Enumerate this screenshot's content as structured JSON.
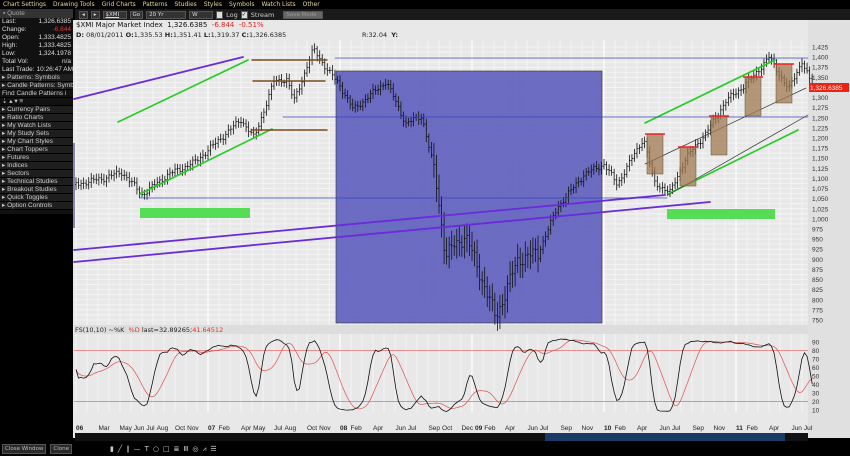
{
  "menu": [
    "Chart Settings",
    "Drawing Tools",
    "Grid Charts",
    "Patterns",
    "Studies",
    "Styles",
    "Symbols",
    "Watch Lists",
    "Other"
  ],
  "quote": {
    "title": "Quote",
    "rows": [
      {
        "label": "Last:",
        "value": "1,326.6385"
      },
      {
        "label": "Change:",
        "value": "-6.844",
        "negative": true
      },
      {
        "label": "Open:",
        "value": "1,333.4825"
      },
      {
        "label": "High:",
        "value": "1,333.4825"
      },
      {
        "label": "Low:",
        "value": "1,324.1978"
      },
      {
        "label": "Total Vol:",
        "value": "n/a"
      },
      {
        "label": "Last Trade:",
        "value": "10:26:47 AM"
      }
    ]
  },
  "sidebar": [
    "Patterns: Symbols",
    "Candle Patterns: Symb",
    "Find Candle Patterns i",
    "",
    "Currency Pairs",
    "Ratio Charts",
    "My Watch Lists",
    "My Study Sets",
    "My Chart Styles",
    "Chart Toppers",
    "Futures",
    "Indices",
    "Sectors",
    "Technical Studies",
    "Breakout Studies",
    "Quick Toggles",
    "Option Controls"
  ],
  "toolbar": {
    "symbol": "$XMI",
    "go": "Go",
    "period": "20 Yr",
    "interval": "W",
    "log_label": "Log",
    "log_checked": false,
    "stream_label": "Stream",
    "stream_checked": true,
    "disabled_btn": "Save Mode"
  },
  "header": {
    "symbol_name": "$XMI Major Market Index",
    "last": "1,326.6385",
    "change": "-6.844",
    "pct": "-0.51%",
    "d_label": "D:",
    "date": "08/01/2011",
    "o_label": "O:",
    "open": "1,335.53",
    "h_label": "H:",
    "high": "1,351.41",
    "l_label": "L:",
    "low": "1,319.37",
    "c_label": "C:",
    "close": "1,326.6385",
    "r": "R:32.04",
    "y": "Y:"
  },
  "price_tag": "1,326.6385",
  "stoch": {
    "name": "FS(10,10)",
    "k_label": "~%K",
    "d_label": "%D",
    "last": "last=32.89265;",
    "last_d": "41.64512"
  },
  "colors": {
    "k_line": "#111111",
    "d_line": "#e05050",
    "highlight_box": "#5555bb",
    "trend_green": "#22cc22",
    "trend_purple": "#6a2bd9"
  },
  "chart_data": {
    "type": "ohlc-bar",
    "title": "$XMI Major Market Index",
    "y_ticks": [
      "1,425",
      "1,400",
      "1,375",
      "1,350",
      "1,300",
      "1,275",
      "1,250",
      "1,225",
      "1,200",
      "1,175",
      "1,150",
      "1,125",
      "1,100",
      "1,075",
      "1,050",
      "1,025",
      "1,000",
      "975",
      "950",
      "925",
      "900",
      "875",
      "850",
      "825",
      "800",
      "775",
      "750"
    ],
    "ylim": [
      750,
      1425
    ],
    "stoch_ticks": [
      "90",
      "80",
      "70",
      "60",
      "50",
      "40",
      "30",
      "20",
      "10"
    ],
    "x_labels": [
      [
        "06",
        2006.0
      ],
      [
        "Mar",
        2006.17
      ],
      [
        "May",
        2006.33
      ],
      [
        "Jun",
        2006.42
      ],
      [
        "Jul",
        2006.5
      ],
      [
        "Aug",
        2006.58
      ],
      [
        "Oct",
        2006.75
      ],
      [
        "Nov",
        2006.83
      ],
      [
        "07",
        2007.0
      ],
      [
        "Feb",
        2007.08
      ],
      [
        "Apr",
        2007.25
      ],
      [
        "May",
        2007.33
      ],
      [
        "Jul",
        2007.5
      ],
      [
        "Aug",
        2007.58
      ],
      [
        "Oct",
        2007.75
      ],
      [
        "Nov",
        2007.83
      ],
      [
        "08",
        2008.0
      ],
      [
        "Feb",
        2008.08
      ],
      [
        "Apr",
        2008.25
      ],
      [
        "Jun",
        2008.42
      ],
      [
        "Jul",
        2008.5
      ],
      [
        "Sep",
        2008.67
      ],
      [
        "Oct",
        2008.75
      ],
      [
        "Dec",
        2008.92
      ],
      [
        "09",
        2009.0
      ],
      [
        "Feb",
        2009.08
      ],
      [
        "Apr",
        2009.25
      ],
      [
        "Jun",
        2009.42
      ],
      [
        "Jul",
        2009.5
      ],
      [
        "Sep",
        2009.67
      ],
      [
        "Nov",
        2009.83
      ],
      [
        "10",
        2010.0
      ],
      [
        "Feb",
        2010.08
      ],
      [
        "Apr",
        2010.25
      ],
      [
        "Jun",
        2010.42
      ],
      [
        "Jul",
        2010.5
      ],
      [
        "Sep",
        2010.67
      ],
      [
        "Nov",
        2010.83
      ],
      [
        "11",
        2011.0
      ],
      [
        "Feb",
        2011.08
      ],
      [
        "Apr",
        2011.25
      ],
      [
        "Jun",
        2011.42
      ],
      [
        "Jul",
        2011.5
      ]
    ],
    "price_path": [
      [
        2006.0,
        1085
      ],
      [
        2006.2,
        1100
      ],
      [
        2006.35,
        1115
      ],
      [
        2006.5,
        1060
      ],
      [
        2006.7,
        1110
      ],
      [
        2006.9,
        1140
      ],
      [
        2007.1,
        1200
      ],
      [
        2007.25,
        1245
      ],
      [
        2007.35,
        1200
      ],
      [
        2007.5,
        1340
      ],
      [
        2007.6,
        1345
      ],
      [
        2007.65,
        1290
      ],
      [
        2007.8,
        1420
      ],
      [
        2007.9,
        1370
      ],
      [
        2008.0,
        1330
      ],
      [
        2008.1,
        1270
      ],
      [
        2008.35,
        1340
      ],
      [
        2008.5,
        1235
      ],
      [
        2008.62,
        1255
      ],
      [
        2008.72,
        1110
      ],
      [
        2008.8,
        910
      ],
      [
        2008.95,
        960
      ],
      [
        2009.1,
        830
      ],
      [
        2009.18,
        755
      ],
      [
        2009.35,
        900
      ],
      [
        2009.5,
        915
      ],
      [
        2009.65,
        1030
      ],
      [
        2009.85,
        1110
      ],
      [
        2010.0,
        1135
      ],
      [
        2010.1,
        1085
      ],
      [
        2010.3,
        1200
      ],
      [
        2010.38,
        1090
      ],
      [
        2010.5,
        1065
      ],
      [
        2010.62,
        1150
      ],
      [
        2010.78,
        1215
      ],
      [
        2010.92,
        1290
      ],
      [
        2011.1,
        1340
      ],
      [
        2011.25,
        1400
      ],
      [
        2011.4,
        1320
      ],
      [
        2011.5,
        1390
      ],
      [
        2011.58,
        1326.64
      ]
    ]
  },
  "bottom": {
    "close_window": "Close Window",
    "clone": "Clone"
  }
}
